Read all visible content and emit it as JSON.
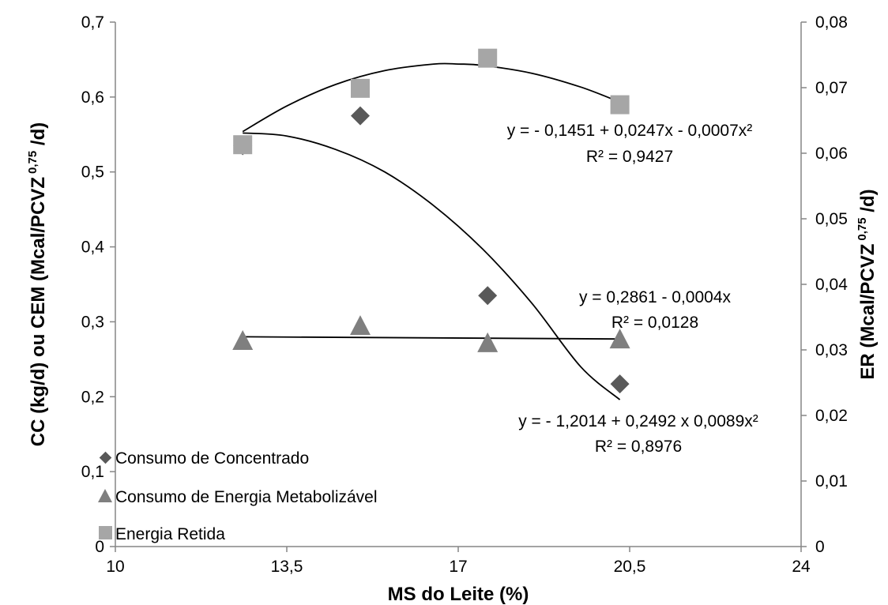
{
  "chart_data": {
    "type": "scatter",
    "title": "",
    "xlabel": "MS do Leite (%)",
    "ylabel_left": "CC (kg/d) ou CEM (Mcal/PCVZ",
    "ylabel_left_sup": "0,75",
    "ylabel_left_end": " /d)",
    "ylabel_right": "ER (Mcal/PCVZ",
    "ylabel_right_sup": "0,75",
    "ylabel_right_end": " /d)",
    "xlim": [
      10,
      24
    ],
    "ylim_left": [
      0,
      0.7
    ],
    "ylim_right": [
      0,
      0.08
    ],
    "x_ticks": [
      10,
      13.5,
      17,
      20.5,
      24
    ],
    "x_tick_labels": [
      "10",
      "13,5",
      "17",
      "20,5",
      "24"
    ],
    "y_left_ticks": [
      0,
      0.1,
      0.2,
      0.3,
      0.4,
      0.5,
      0.6,
      0.7
    ],
    "y_left_tick_labels": [
      "0",
      "0,1",
      "0,2",
      "0,3",
      "0,4",
      "0,5",
      "0,6",
      "0,7"
    ],
    "y_right_ticks": [
      0,
      0.01,
      0.02,
      0.03,
      0.04,
      0.05,
      0.06,
      0.07,
      0.08
    ],
    "y_right_tick_labels": [
      "0",
      "0,01",
      "0,02",
      "0,03",
      "0,04",
      "0,05",
      "0,06",
      "0,07",
      "0,08"
    ],
    "grid": false,
    "legend_position": "bottom-left",
    "series": [
      {
        "name": "Consumo de Concentrado",
        "marker": "diamond",
        "color": "#595959",
        "axis": "left",
        "x": [
          12.6,
          15.0,
          17.6,
          20.3
        ],
        "y": [
          0.535,
          0.575,
          0.335,
          0.217
        ]
      },
      {
        "name": "Consumo de Energia Metabolizável",
        "marker": "triangle",
        "color": "#7f7f7f",
        "axis": "left",
        "x": [
          12.6,
          15.0,
          17.6,
          20.3
        ],
        "y": [
          0.273,
          0.293,
          0.27,
          0.275
        ]
      },
      {
        "name": "Energia Retida",
        "marker": "square",
        "color": "#a6a6a6",
        "axis": "right",
        "x": [
          12.6,
          15.0,
          17.6,
          20.3
        ],
        "y": [
          0.0613,
          0.0699,
          0.0745,
          0.0674
        ]
      }
    ],
    "trendlines": [
      {
        "series": "Energia Retida",
        "axis": "right",
        "kind": "poly2",
        "x": [
          12.6,
          13.5,
          14.5,
          15.5,
          16.5,
          17.0,
          17.5,
          18.5,
          19.5,
          20.3
        ],
        "y": [
          0.0633,
          0.0672,
          0.0705,
          0.0726,
          0.0736,
          0.0736,
          0.0734,
          0.0722,
          0.0701,
          0.0678
        ]
      },
      {
        "series": "Consumo de Concentrado",
        "axis": "left",
        "kind": "poly2",
        "x": [
          12.6,
          13.5,
          14.5,
          15.5,
          16.5,
          17.5,
          18.5,
          19.5,
          20.3
        ],
        "y": [
          0.552,
          0.548,
          0.53,
          0.5,
          0.455,
          0.397,
          0.325,
          0.24,
          0.196
        ]
      },
      {
        "series": "Consumo de Energia Metabolizável",
        "axis": "left",
        "kind": "linear",
        "x": [
          12.6,
          20.3
        ],
        "y": [
          0.28,
          0.277
        ]
      }
    ],
    "annotations": [
      {
        "id": "eq1",
        "line1": "y = - 0,1451 + 0,0247x  - 0,0007x²",
        "line2": "R² = 0,9427"
      },
      {
        "id": "eq2",
        "line1": "y = 0,2861 - 0,0004x",
        "line2": "R² = 0,0128"
      },
      {
        "id": "eq3",
        "line1": "y = - 1,2014 + 0,2492 x 0,0089x²",
        "line2": "R² = 0,8976"
      }
    ]
  }
}
